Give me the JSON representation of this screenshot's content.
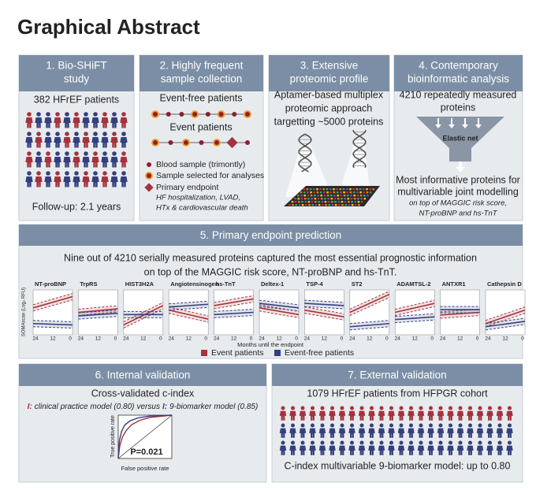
{
  "title": "Graphical Abstract",
  "panel1": {
    "header": [
      "1. Bio-SHiFT",
      "study"
    ],
    "patients": "382 HFrEF patients",
    "followup": "Follow-up: 2.1 years"
  },
  "panel2": {
    "header": [
      "2. Highly frequent",
      "sample collection"
    ],
    "event_free": "Event-free patients",
    "event": "Event patients",
    "legend": [
      "Blood sample (trimontly)",
      "Sample selected for analyses",
      "Primary endpoint"
    ],
    "endpoint_detail": [
      "HF hospitalization, LVAD,",
      "HTx & cardiovascular death"
    ]
  },
  "panel3": {
    "header": [
      "3. Extensive",
      "proteomic profile"
    ],
    "text": [
      "Aptamer-based multiplex",
      "proteomic approach",
      "targetting ~5000 proteins"
    ]
  },
  "panel4": {
    "header": [
      "4. Contemporary",
      "bioinformatic analysis"
    ],
    "text": [
      "4210 repeatedly measured",
      "proteins"
    ],
    "funnel": "Elastic net",
    "result": [
      "Most informative proteins for",
      "multivariable joint modelling"
    ],
    "result_detail": [
      "on top of MAGGIC risk score,",
      "NT-proBNP and hs-TnT"
    ]
  },
  "panel5": {
    "header": "5. Primary endpoint prediction",
    "text": [
      "Nine out of 4210 serially measured proteins captured the most essential prognostic information",
      "on top of the MAGGIC risk score, NT-proBNP and hs-TnT."
    ],
    "y_axis": "SOMAscan (Log₂ RFU)",
    "x_ticks": [
      "24",
      "12",
      "0"
    ],
    "proteins": [
      "NT-proBNP",
      "TrpRS",
      "HIST3H2A",
      "Angiotensinogen",
      "hs-TnT",
      "Deltex-1",
      "TSP-4",
      "ST2",
      "ADAMTSL-2",
      "ANTXR1",
      "Cathepsin D"
    ],
    "x_axis": "Months until the endpoint",
    "legend": [
      "Event patients",
      "Event-free patients"
    ]
  },
  "panel6": {
    "header": "6. Internal validation",
    "text": "Cross-validated c-index",
    "model_marker": "I:",
    "model_a": "clinical practice model (0.80)",
    "versus": "versus",
    "model_b": "9-biomarker model (0.85)",
    "p_value": "P=0.021",
    "y_axis": "True positive rate",
    "x_axis": "False positive rate"
  },
  "panel7": {
    "header": "7. External validation",
    "text": "1079 HFrEF patients from HFPGR cohort",
    "result": "C-index multivariable 9-biomarker model: up to 0.80"
  }
}
